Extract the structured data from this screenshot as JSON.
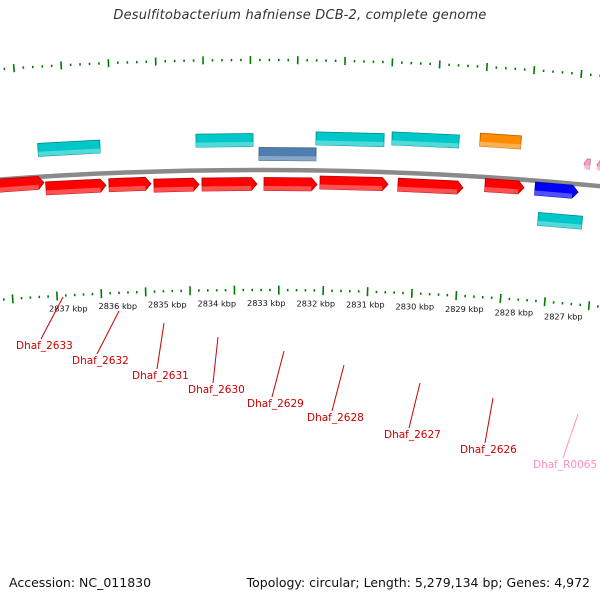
{
  "title": "Desulfitobacterium hafniense DCB-2, complete genome",
  "footer": {
    "accession": "Accession: NC_011830",
    "stats": "Topology: circular; Length: 5,279,134 bp; Genes: 4,972"
  },
  "kbp_labels": [
    "2837 kbp",
    "2836 kbp",
    "2835 kbp",
    "2834 kbp",
    "2833 kbp",
    "2832 kbp",
    "2831 kbp",
    "2830 kbp",
    "2829 kbp",
    "2828 kbp",
    "2827 kbp"
  ],
  "gene_labels": [
    "Dhaf_2633",
    "Dhaf_2632",
    "Dhaf_2631",
    "Dhaf_2630",
    "Dhaf_2629",
    "Dhaf_2628",
    "Dhaf_2627",
    "Dhaf_2626",
    "Dhaf_R0065"
  ],
  "colors": {
    "gene_red": "#ff0000",
    "gene_cyan": "#00c8c8",
    "gene_blue": "#0000ff",
    "gene_steel": "#4f7fb0",
    "gene_orange": "#ff8c00",
    "gene_pink": "#ff9ec8",
    "tick_green": "#007a00",
    "backbone": "#8a8a8a",
    "label_red": "#cc0000",
    "label_pink": "#ff8fc0"
  }
}
